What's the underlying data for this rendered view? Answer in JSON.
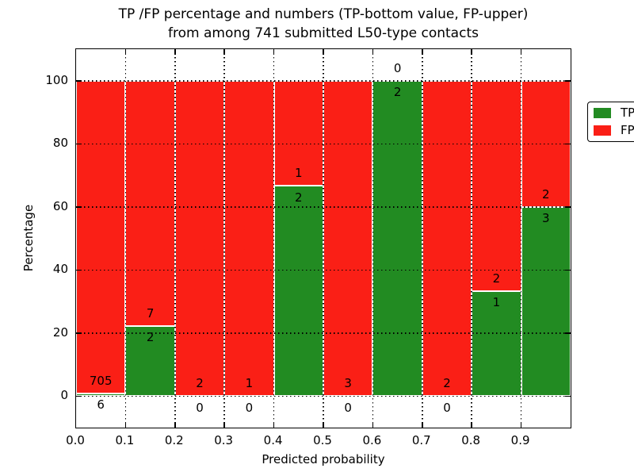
{
  "title": {
    "line1": "TP /FP percentage and numbers (TP-bottom value, FP-upper)",
    "line2": "from among 741 submitted L50-type contacts"
  },
  "axes": {
    "xlabel": "Predicted probability",
    "ylabel": "Percentage",
    "y_tick_labels": [
      "0",
      "20",
      "40",
      "60",
      "80",
      "100"
    ],
    "y_tick_values": [
      0,
      20,
      40,
      60,
      80,
      100
    ],
    "x_tick_labels": [
      "0.0",
      "0.1",
      "0.2",
      "0.3",
      "0.4",
      "0.5",
      "0.6",
      "0.7",
      "0.8",
      "0.9"
    ],
    "x_tick_values": [
      0,
      0.1,
      0.2,
      0.3,
      0.4,
      0.5,
      0.6,
      0.7,
      0.8,
      0.9
    ],
    "ylim": [
      -10,
      110
    ],
    "xlim": [
      0,
      1
    ]
  },
  "legend": {
    "position": "upper right",
    "items": [
      {
        "label": "TP",
        "color": "#228b22"
      },
      {
        "label": "FP",
        "color": "#fa1f16"
      }
    ]
  },
  "chart_data": {
    "type": "bar",
    "stacked": true,
    "percentage_normalized": true,
    "title": "TP /FP percentage and numbers (TP-bottom value, FP-upper) from among 741 submitted L50-type contacts",
    "xlabel": "Predicted probability",
    "ylabel": "Percentage",
    "total_contacts": 741,
    "bin_edges": [
      0.0,
      0.1,
      0.2,
      0.3,
      0.4,
      0.5,
      0.6,
      0.7,
      0.8,
      0.9,
      1.0
    ],
    "categories": [
      "0.0-0.1",
      "0.1-0.2",
      "0.2-0.3",
      "0.3-0.4",
      "0.4-0.5",
      "0.5-0.6",
      "0.6-0.7",
      "0.7-0.8",
      "0.8-0.9",
      "0.9-1.0"
    ],
    "series": [
      {
        "name": "TP",
        "color": "#228b22",
        "values": [
          6,
          2,
          0,
          0,
          2,
          0,
          2,
          0,
          1,
          3
        ]
      },
      {
        "name": "FP",
        "color": "#fa1f16",
        "values": [
          705,
          7,
          2,
          1,
          1,
          3,
          0,
          2,
          2,
          2
        ]
      }
    ],
    "tp_percent": [
      0.84,
      22.22,
      0,
      0,
      66.67,
      0,
      100,
      0,
      33.33,
      60
    ],
    "ylim": [
      -10,
      110
    ],
    "grid": "dotted",
    "legend_position": "upper right"
  }
}
